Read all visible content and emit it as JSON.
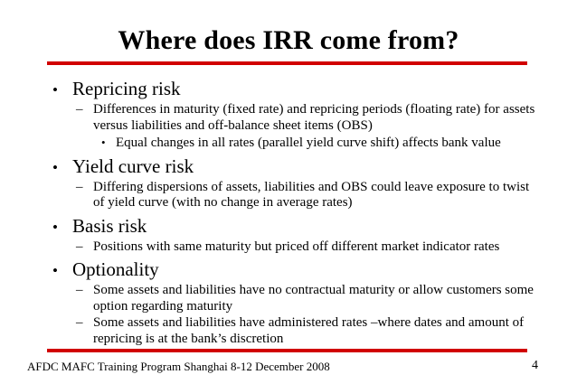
{
  "colors": {
    "accent": "#d10000",
    "text": "#000000",
    "background": "#ffffff"
  },
  "slide": {
    "title": "Where does IRR come from?",
    "footer": {
      "left": "AFDC MAFC Training Program Shanghai 8-12 December 2008",
      "page_number": "4"
    }
  },
  "content": {
    "items": [
      {
        "level": 1,
        "marker": "•",
        "text": "Repricing risk"
      },
      {
        "level": 2,
        "marker": "–",
        "text": "Differences in maturity (fixed rate) and repricing periods (floating rate) for assets versus liabilities and off-balance sheet items (OBS)"
      },
      {
        "level": 3,
        "marker": "•",
        "text": "Equal changes in all rates (parallel yield curve shift) affects bank value"
      },
      {
        "level": 1,
        "marker": "•",
        "text": "Yield curve risk"
      },
      {
        "level": 2,
        "marker": "–",
        "text": "Differing dispersions of assets, liabilities and OBS could leave exposure to twist of yield curve (with no change in average rates)"
      },
      {
        "level": 1,
        "marker": "•",
        "text": "Basis risk"
      },
      {
        "level": 2,
        "marker": "–",
        "text": "Positions with same maturity but priced off different market indicator rates"
      },
      {
        "level": 1,
        "marker": "•",
        "text": "Optionality"
      },
      {
        "level": 2,
        "marker": "–",
        "text": "Some assets and liabilities have no contractual maturity or allow customers some option regarding maturity"
      },
      {
        "level": 2,
        "marker": "–",
        "text": "Some assets and liabilities have administered rates –where dates and amount of repricing is at the bank’s discretion"
      }
    ]
  }
}
